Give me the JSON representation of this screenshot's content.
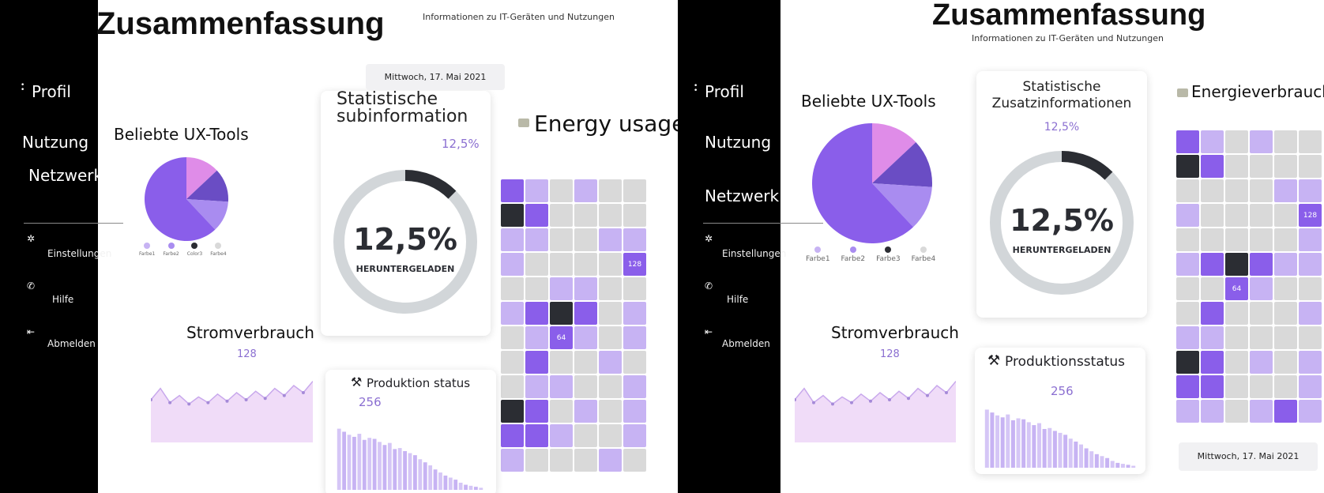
{
  "colors": {
    "c_lilac_light": "#c7b3f3",
    "c_lilac": "#a98cf0",
    "c_purple": "#8a5eea",
    "c_dark": "#2b2d33",
    "c_gray": "#d9d9d9",
    "c_pink": "#df8ce8",
    "c_violet": "#6a4dc4",
    "ring_track": "#d2d6d9",
    "ring_value": "#2b2d33",
    "area_fill": "#f0dcf8",
    "area_line": "#c8a8ec"
  },
  "left": {
    "title": "Zusammenfassung",
    "subtitle": "Informationen zu IT-Geräten und Nutzungen",
    "date": "Mittwoch, 17. Mai 2021",
    "nav": {
      "profil": "Profil",
      "nutzung": "Nutzung",
      "netzwerk": "Netzwerk",
      "einstellungen": "Einstellungen",
      "hilfe": "Hilfe",
      "abmelden": "Abmelden"
    },
    "ux_tools": {
      "title": "Beliebte UX-Tools",
      "legend": [
        "Farbe1",
        "Farbe2",
        "Color3",
        "Farbe4"
      ]
    },
    "stats": {
      "title_line1": "Statistische",
      "title_line2": "subinformation",
      "pct_small": "12,5%",
      "pct_big": "12,5%",
      "label": "HERUNTERGELADEN",
      "value": 0.125
    },
    "energy": {
      "title": "Energy usage",
      "icon": "folder-icon"
    },
    "strom": {
      "title": "Stromverbrauch",
      "value": "128"
    },
    "produktion": {
      "title": "Produktion status",
      "value": "256",
      "icon": "hammer-pick-icon"
    },
    "grid_labels": {
      "a": "128",
      "b": "64"
    }
  },
  "right": {
    "title": "Zusammenfassung",
    "subtitle": "Informationen zu IT-Geräten und Nutzungen",
    "date": "Mittwoch, 17. Mai 2021",
    "nav": {
      "profil": "Profil",
      "nutzung": "Nutzung",
      "netzwerk": "Netzwerk",
      "einstellungen": "Einstellungen",
      "hilfe": "Hilfe",
      "abmelden": "Abmelden"
    },
    "ux_tools": {
      "title": "Beliebte UX-Tools",
      "legend": [
        "Farbe1",
        "Farbe2",
        "Farbe3",
        "Farbe4"
      ]
    },
    "stats": {
      "title_line1": "Statistische",
      "title_line2": "Zusatzinformationen",
      "pct_small": "12,5%",
      "pct_big": "12,5%",
      "label": "HERUNTERGELADEN",
      "value": 0.125
    },
    "energy": {
      "title": "Energieverbrauch",
      "icon": "folder-icon"
    },
    "strom": {
      "title": "Stromverbrauch",
      "value": "128"
    },
    "produktion": {
      "title": "Produktionsstatus",
      "value": "256",
      "icon": "hammer-pick-icon"
    },
    "grid_labels": {
      "a": "128",
      "b": "64"
    }
  },
  "pie": [
    {
      "label": "Farbe1",
      "value": 0.62,
      "color": "#8a5eea"
    },
    {
      "label": "Farbe2",
      "value": 0.13,
      "color": "#df8ce8"
    },
    {
      "label": "Color3",
      "value": 0.13,
      "color": "#6a4dc4"
    },
    {
      "label": "Farbe4",
      "value": 0.12,
      "color": "#a98cf0"
    }
  ],
  "strom_series": [
    22,
    38,
    18,
    28,
    16,
    26,
    18,
    30,
    20,
    32,
    22,
    34,
    24,
    38,
    28,
    42,
    32,
    48
  ],
  "produktion_bars": [
    60,
    57,
    54,
    52,
    55,
    49,
    51,
    50,
    47,
    44,
    46,
    40,
    41,
    38,
    36,
    34,
    30,
    27,
    24,
    20,
    17,
    14,
    12,
    10,
    7,
    5,
    4,
    3,
    2
  ],
  "grid_left": [
    [
      "p",
      "l",
      "g",
      "l",
      "g",
      "g"
    ],
    [
      "d",
      "p",
      "g",
      "g",
      "g",
      "g"
    ],
    [
      "l",
      "l",
      "g",
      "g",
      "l",
      "l"
    ],
    [
      "l",
      "g",
      "g",
      "g",
      "g",
      "v"
    ],
    [
      "g",
      "g",
      "l",
      "l",
      "g",
      "g"
    ],
    [
      "l",
      "p",
      "d",
      "p",
      "g",
      "l"
    ],
    [
      "g",
      "l",
      "p",
      "l",
      "g",
      "l"
    ],
    [
      "g",
      "p",
      "g",
      "g",
      "l",
      "g"
    ],
    [
      "g",
      "l",
      "l",
      "g",
      "g",
      "l"
    ],
    [
      "d",
      "p",
      "g",
      "l",
      "g",
      "l"
    ],
    [
      "p",
      "p",
      "l",
      "g",
      "g",
      "l"
    ],
    [
      "l",
      "g",
      "g",
      "g",
      "l",
      "g"
    ]
  ],
  "grid_right": [
    [
      "p",
      "l",
      "g",
      "l",
      "g",
      "g"
    ],
    [
      "d",
      "p",
      "g",
      "g",
      "g",
      "g"
    ],
    [
      "g",
      "g",
      "g",
      "g",
      "l",
      "l"
    ],
    [
      "l",
      "g",
      "g",
      "g",
      "g",
      "v"
    ],
    [
      "g",
      "g",
      "g",
      "g",
      "g",
      "l"
    ],
    [
      "l",
      "p",
      "d",
      "p",
      "l",
      "l"
    ],
    [
      "g",
      "g",
      "p",
      "l",
      "g",
      "g"
    ],
    [
      "g",
      "p",
      "g",
      "g",
      "g",
      "l"
    ],
    [
      "l",
      "l",
      "g",
      "g",
      "g",
      "g"
    ],
    [
      "d",
      "p",
      "g",
      "l",
      "g",
      "l"
    ],
    [
      "p",
      "p",
      "g",
      "g",
      "g",
      "l"
    ],
    [
      "l",
      "l",
      "g",
      "l",
      "p",
      "l"
    ]
  ]
}
